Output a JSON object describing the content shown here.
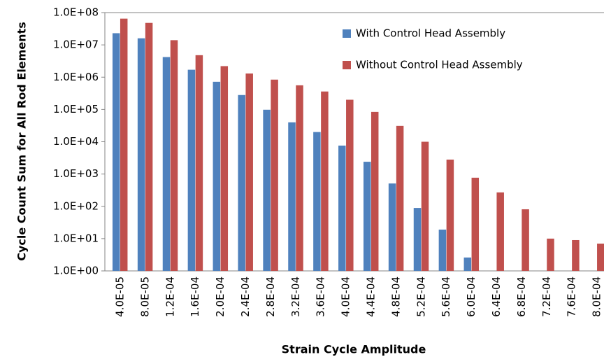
{
  "chart_data": {
    "type": "bar",
    "y_label": "Cycle Count Sum for All Rod Elements",
    "x_label": "Strain Cycle Amplitude",
    "categories": [
      "4.0E-05",
      "8.0E-05",
      "1.2E-04",
      "1.6E-04",
      "2.0E-04",
      "2.4E-04",
      "2.8E-04",
      "3.2E-04",
      "3.6E-04",
      "4.0E-04",
      "4.4E-04",
      "4.8E-04",
      "5.2E-04",
      "5.6E-04",
      "6.0E-04",
      "6.4E-04",
      "6.8E-04",
      "7.2E-04",
      "7.6E-04",
      "8.0E-04"
    ],
    "series": [
      {
        "name": "With Control Head Assembly",
        "color": "#4f81bd",
        "values": [
          23000000,
          16000000,
          4200000,
          1700000,
          720000,
          280000,
          98000,
          40000,
          20000,
          7600,
          2400,
          510,
          89,
          19,
          2.6,
          null,
          null,
          null,
          null,
          null
        ]
      },
      {
        "name": "Without Control Head Assembly",
        "color": "#c0504d",
        "values": [
          65000000,
          48000000,
          14000000,
          4800000,
          2200000,
          1300000,
          840000,
          560000,
          360000,
          200000,
          84000,
          31000,
          10000,
          2800,
          770,
          270,
          81,
          10,
          9,
          7
        ]
      }
    ],
    "log_y": true,
    "grid": false,
    "legend": "upper right",
    "ylim": [
      1,
      100000000
    ],
    "yticks": [
      {
        "value": 1,
        "label": "1.0E+00"
      },
      {
        "value": 10,
        "label": "1.0E+01"
      },
      {
        "value": 100,
        "label": "1.0E+02"
      },
      {
        "value": 1000,
        "label": "1.0E+03"
      },
      {
        "value": 10000,
        "label": "1.0E+04"
      },
      {
        "value": 100000,
        "label": "1.0E+05"
      },
      {
        "value": 1000000,
        "label": "1.0E+06"
      },
      {
        "value": 10000000,
        "label": "1.0E+07"
      },
      {
        "value": 100000000,
        "label": "1.0E+08"
      }
    ]
  }
}
